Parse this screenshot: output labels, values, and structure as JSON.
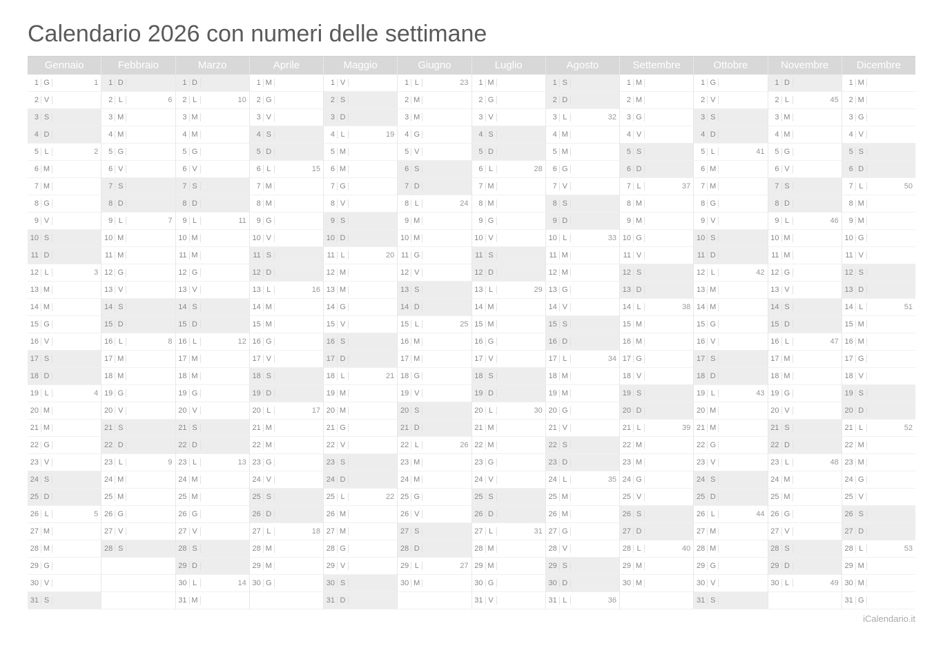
{
  "title": "Calendario 2026 con numeri delle settimane",
  "footer": "iCalendario.it",
  "colors": {
    "header_bg": "#d8d8d8",
    "header_text": "#ffffff",
    "weekend_bg": "#ededed",
    "text": "#888888",
    "title": "#5a5a5a",
    "border": "#e8e8e8"
  },
  "dow_labels": [
    "L",
    "M",
    "M",
    "G",
    "V",
    "S",
    "D"
  ],
  "weekend_dows": [
    "S",
    "D"
  ],
  "months": [
    {
      "name": "Gennaio",
      "days": 31,
      "first_dow": 3,
      "weeks": {
        "1": 1,
        "5": 2,
        "12": 3,
        "19": 4,
        "26": 5
      }
    },
    {
      "name": "Febbraio",
      "days": 28,
      "first_dow": 6,
      "weeks": {
        "2": 6,
        "9": 7,
        "16": 8,
        "23": 9
      }
    },
    {
      "name": "Marzo",
      "days": 31,
      "first_dow": 6,
      "weeks": {
        "2": 10,
        "9": 11,
        "16": 12,
        "23": 13,
        "30": 14
      }
    },
    {
      "name": "Aprile",
      "days": 30,
      "first_dow": 2,
      "weeks": {
        "6": 15,
        "13": 16,
        "20": 17,
        "27": 18
      }
    },
    {
      "name": "Maggio",
      "days": 31,
      "first_dow": 4,
      "weeks": {
        "4": 19,
        "11": 20,
        "18": 21,
        "25": 22
      }
    },
    {
      "name": "Giugno",
      "days": 30,
      "first_dow": 0,
      "weeks": {
        "1": 23,
        "8": 24,
        "15": 25,
        "22": 26,
        "29": 27
      }
    },
    {
      "name": "Luglio",
      "days": 31,
      "first_dow": 2,
      "weeks": {
        "6": 28,
        "13": 29,
        "20": 30,
        "27": 31
      }
    },
    {
      "name": "Agosto",
      "days": 31,
      "first_dow": 5,
      "weeks": {
        "3": 32,
        "10": 33,
        "17": 34,
        "24": 35,
        "31": 36
      }
    },
    {
      "name": "Settembre",
      "days": 30,
      "first_dow": 1,
      "weeks": {
        "7": 37,
        "14": 38,
        "21": 39,
        "28": 40
      }
    },
    {
      "name": "Ottobre",
      "days": 31,
      "first_dow": 3,
      "weeks": {
        "5": 41,
        "12": 42,
        "19": 43,
        "26": 44
      }
    },
    {
      "name": "Novembre",
      "days": 30,
      "first_dow": 6,
      "weeks": {
        "2": 45,
        "9": 46,
        "16": 47,
        "23": 48,
        "30": 49
      }
    },
    {
      "name": "Dicembre",
      "days": 31,
      "first_dow": 1,
      "weeks": {
        "7": 50,
        "14": 51,
        "21": 52,
        "28": 53
      }
    }
  ]
}
